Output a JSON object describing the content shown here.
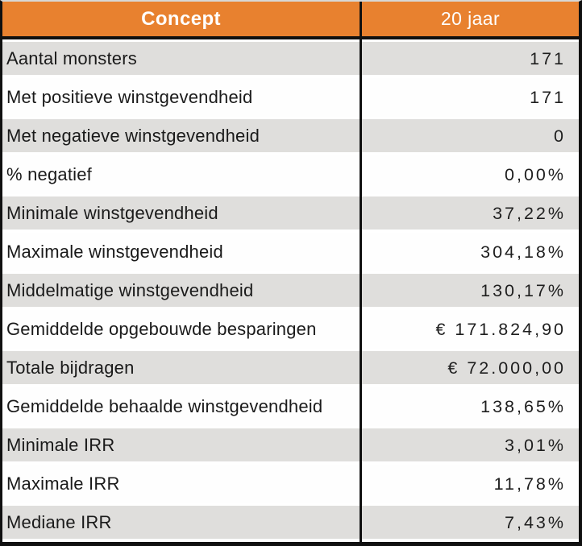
{
  "table": {
    "header": {
      "concept_label": "Concept",
      "period_label": "20 jaar"
    },
    "rows": [
      {
        "label": "Aantal monsters",
        "value": "171"
      },
      {
        "label": "Met positieve winstgevendheid",
        "value": "171"
      },
      {
        "label": "Met negatieve winstgevendheid",
        "value": "0"
      },
      {
        "label": "% negatief",
        "value": "0,00%"
      },
      {
        "label": "Minimale winstgevendheid",
        "value": "37,22%"
      },
      {
        "label": "Maximale winstgevendheid",
        "value": "304,18%"
      },
      {
        "label": "Middelmatige winstgevendheid",
        "value": "130,17%"
      },
      {
        "label": "Gemiddelde opgebouwde besparingen",
        "value": "€ 171.824,90"
      },
      {
        "label": "Totale bijdragen",
        "value": "€ 72.000,00"
      },
      {
        "label": "Gemiddelde behaalde winstgevendheid",
        "value": "138,65%"
      },
      {
        "label": "Minimale IRR",
        "value": "3,01%"
      },
      {
        "label": "Maximale IRR",
        "value": "11,78%"
      },
      {
        "label": "Mediane IRR",
        "value": "7,43%"
      }
    ],
    "colors": {
      "header_bg": "#E8812F",
      "header_text": "#FFFFFF",
      "alt_row_bg": "#DFDEDC",
      "row_bg": "#FEFEFE",
      "border": "#101010"
    }
  },
  "chart_data": {
    "type": "table",
    "columns": [
      "Concept",
      "20 jaar"
    ],
    "rows": [
      [
        "Aantal monsters",
        "171"
      ],
      [
        "Met positieve winstgevendheid",
        "171"
      ],
      [
        "Met negatieve winstgevendheid",
        "0"
      ],
      [
        "% negatief",
        "0,00%"
      ],
      [
        "Minimale winstgevendheid",
        "37,22%"
      ],
      [
        "Maximale winstgevendheid",
        "304,18%"
      ],
      [
        "Middelmatige winstgevendheid",
        "130,17%"
      ],
      [
        "Gemiddelde opgebouwde besparingen",
        "€ 171.824,90"
      ],
      [
        "Totale bijdragen",
        "€ 72.000,00"
      ],
      [
        "Gemiddelde behaalde winstgevendheid",
        "138,65%"
      ],
      [
        "Minimale IRR",
        "3,01%"
      ],
      [
        "Maximale IRR",
        "11,78%"
      ],
      [
        "Mediane IRR",
        "7,43%"
      ]
    ]
  }
}
